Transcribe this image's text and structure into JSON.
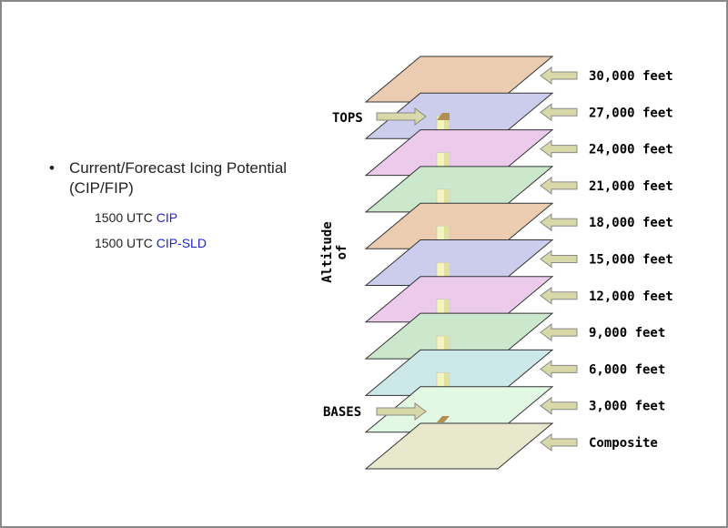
{
  "bullet": {
    "title": "Current/Forecast Icing Potential (CIP/FIP)",
    "links": [
      {
        "prefix": "1500 UTC",
        "link": "CIP"
      },
      {
        "prefix": "1500 UTC",
        "link": "CIP-SLD"
      }
    ]
  },
  "diagram": {
    "axis_label": [
      "Altitude",
      "of"
    ],
    "tops": "TOPS",
    "bases": "BASES",
    "layers": [
      {
        "label": "30,000 feet",
        "color": "#ecccb0"
      },
      {
        "label": "27,000 feet",
        "color": "#ccccec"
      },
      {
        "label": "24,000 feet",
        "color": "#eccaec"
      },
      {
        "label": "21,000 feet",
        "color": "#cce8cc"
      },
      {
        "label": "18,000 feet",
        "color": "#ecccb0"
      },
      {
        "label": "15,000 feet",
        "color": "#ccccec"
      },
      {
        "label": "12,000 feet",
        "color": "#eccaec"
      },
      {
        "label": "9,000 feet",
        "color": "#cce8cc"
      },
      {
        "label": "6,000 feet",
        "color": "#cce8e8"
      },
      {
        "label": "3,000 feet",
        "color": "#e2f8e2"
      },
      {
        "label": "Composite",
        "color": "#e8e8cc"
      }
    ]
  }
}
